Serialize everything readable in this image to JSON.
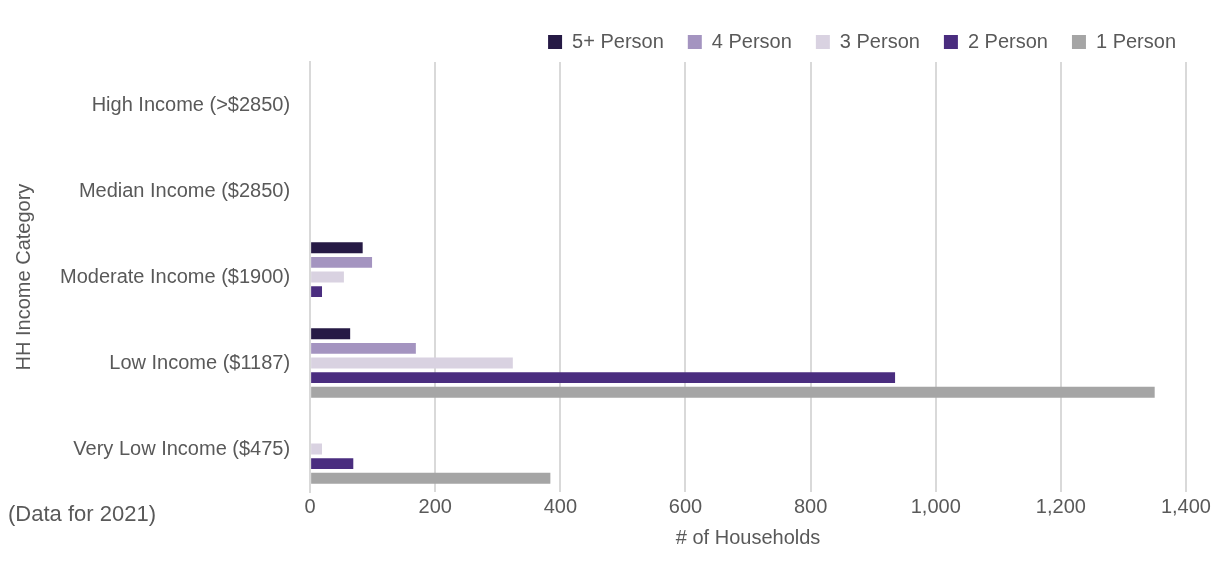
{
  "chart_data": {
    "type": "bar",
    "orientation": "horizontal",
    "ylabel": "HH Income Category",
    "xlabel": "# of Households",
    "categories": [
      "High Income (>$2850)",
      "Median Income ($2850)",
      "Moderate Income ($1900)",
      "Low Income ($1187)",
      "Very Low Income ($475)"
    ],
    "series": [
      {
        "name": "5+ Person",
        "color": "#261a45",
        "values": [
          null,
          null,
          84,
          64,
          null
        ]
      },
      {
        "name": "4 Person",
        "color": "#a494c0",
        "values": [
          null,
          null,
          99,
          169,
          null
        ]
      },
      {
        "name": "3 Person",
        "color": "#d9d2e1",
        "values": [
          null,
          null,
          54,
          324,
          19
        ]
      },
      {
        "name": "2 Person",
        "color": "#4a2d7f",
        "values": [
          null,
          null,
          19,
          935,
          69
        ]
      },
      {
        "name": "1 Person",
        "color": "#a5a5a5",
        "values": [
          null,
          null,
          null,
          1350,
          384
        ]
      }
    ],
    "xlim": [
      0,
      1400
    ],
    "xticks": [
      0,
      {
        "value": 200,
        "label": "200"
      },
      {
        "value": 400,
        "label": "400"
      },
      {
        "value": 600,
        "label": "600"
      },
      {
        "value": 800,
        "label": "800"
      },
      {
        "value": 1000,
        "label": "1,000"
      },
      {
        "value": 1200,
        "label": "1,200"
      },
      {
        "value": 1400,
        "label": "1,400"
      }
    ],
    "grid": "x",
    "legend": "top right",
    "annotations": [
      "(Data for 2021)"
    ]
  }
}
